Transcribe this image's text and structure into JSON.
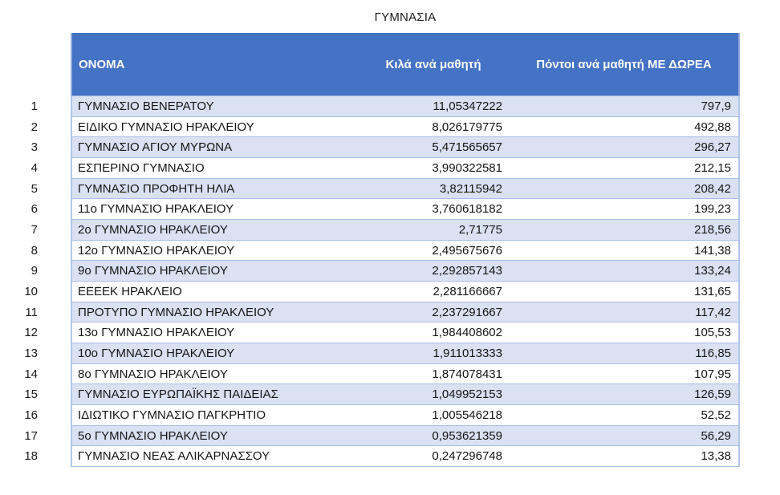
{
  "title": "ΓΥΜΝΑΣΙΑ",
  "colors": {
    "header_bg": "#4472C4",
    "header_text": "#FFFFFF",
    "band_row_bg": "#D9E1F2",
    "plain_row_bg": "#FFFFFF",
    "border": "#AABFE6",
    "body_text": "#151515"
  },
  "chart_data": {
    "type": "table",
    "title": "ΓΥΜΝΑΣΙΑ",
    "columns": [
      "ΟΝΟΜΑ",
      "Κιλά ανά μαθητή",
      "Πόντοι ανά μαθητή ΜΕ ΔΩΡΕΑ"
    ],
    "decimal_separator": ",",
    "banding": "odd rows light blue, even rows white",
    "rows": [
      {
        "rank": "1",
        "name": "ΓΥΜΝΑΣΙΟ ΒΕΝΕΡΑΤΟΥ",
        "kg_per_student": "11,05347222",
        "points_per_student": "797,9"
      },
      {
        "rank": "2",
        "name": "ΕΙΔΙΚΟ ΓΥΜΝΑΣΙΟ ΗΡΑΚΛΕΙΟΥ",
        "kg_per_student": "8,026179775",
        "points_per_student": "492,88"
      },
      {
        "rank": "3",
        "name": "ΓΥΜΝΑΣΙΟ ΑΓΙΟΥ ΜΥΡΩΝΑ",
        "kg_per_student": "5,471565657",
        "points_per_student": "296,27"
      },
      {
        "rank": "4",
        "name": "ΕΣΠΕΡΙΝΟ ΓΥΜΝΑΣΙΟ",
        "kg_per_student": "3,990322581",
        "points_per_student": "212,15"
      },
      {
        "rank": "5",
        "name": "ΓΥΜΝΑΣΙΟ ΠΡΟΦΗΤΗ ΗΛΙΑ",
        "kg_per_student": "3,82115942",
        "points_per_student": "208,42"
      },
      {
        "rank": "6",
        "name": "11ο ΓΥΜΝΑΣΙΟ ΗΡΑΚΛΕΙΟΥ",
        "kg_per_student": "3,760618182",
        "points_per_student": "199,23"
      },
      {
        "rank": "7",
        "name": "2ο ΓΥΜΝΑΣΙΟ ΗΡΑΚΛΕΙΟΥ",
        "kg_per_student": "2,71775",
        "points_per_student": "218,56"
      },
      {
        "rank": "8",
        "name": "12ο ΓΥΜΝΑΣΙΟ ΗΡΑΚΛΕΙΟΥ",
        "kg_per_student": "2,495675676",
        "points_per_student": "141,38"
      },
      {
        "rank": "9",
        "name": "9ο ΓΥΜΝΑΣΙΟ ΗΡΑΚΛΕΙΟΥ",
        "kg_per_student": "2,292857143",
        "points_per_student": "133,24"
      },
      {
        "rank": "10",
        "name": "ΕΕΕΕΚ ΗΡΑΚΛΕΙΟ",
        "kg_per_student": "2,281166667",
        "points_per_student": "131,65"
      },
      {
        "rank": "11",
        "name": "ΠΡΟΤΥΠΟ ΓΥΜΝΑΣΙΟ ΗΡΑΚΛΕΙΟΥ",
        "kg_per_student": "2,237291667",
        "points_per_student": "117,42"
      },
      {
        "rank": "12",
        "name": "13ο ΓΥΜΝΑΣΙΟ ΗΡΑΚΛΕΙΟΥ",
        "kg_per_student": "1,984408602",
        "points_per_student": "105,53"
      },
      {
        "rank": "13",
        "name": "10ο ΓΥΜΝΑΣΙΟ ΗΡΑΚΛΕΙΟΥ",
        "kg_per_student": "1,911013333",
        "points_per_student": "116,85"
      },
      {
        "rank": "14",
        "name": "8ο ΓΥΜΝΑΣΙΟ ΗΡΑΚΛΕΙΟΥ",
        "kg_per_student": "1,874078431",
        "points_per_student": "107,95"
      },
      {
        "rank": "15",
        "name": "ΓΥΜΝΑΣΙΟ ΕΥΡΩΠΑΪΚΗΣ ΠΑΙΔΕΙΑΣ",
        "kg_per_student": "1,049952153",
        "points_per_student": "126,59"
      },
      {
        "rank": "16",
        "name": "ΙΔΙΩΤΙΚΟ ΓΥΜΝΑΣΙΟ ΠΑΓΚΡΗΤΙΟ",
        "kg_per_student": "1,005546218",
        "points_per_student": "52,52"
      },
      {
        "rank": "17",
        "name": "5ο ΓΥΜΝΑΣΙΟ ΗΡΑΚΛΕΙΟΥ",
        "kg_per_student": "0,953621359",
        "points_per_student": "56,29"
      },
      {
        "rank": "18",
        "name": "ΓΥΜΝΑΣΙΟ ΝΕΑΣ ΑΛΙΚΑΡΝΑΣΣΟΥ",
        "kg_per_student": "0,247296748",
        "points_per_student": "13,38"
      }
    ]
  }
}
